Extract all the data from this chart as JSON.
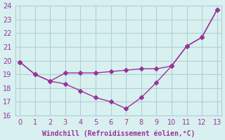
{
  "x": [
    0,
    1,
    2,
    3,
    4,
    5,
    6,
    7,
    8,
    9,
    10,
    11,
    12,
    13
  ],
  "temp_line": [
    19.9,
    19.0,
    18.5,
    19.1,
    19.1,
    19.1,
    19.2,
    19.3,
    19.4,
    19.4,
    19.6,
    21.05,
    21.7,
    23.7
  ],
  "windchill_line": [
    19.9,
    19.0,
    18.5,
    18.3,
    17.8,
    17.3,
    17.0,
    16.5,
    17.3,
    18.4,
    19.6,
    21.05,
    21.7,
    23.7
  ],
  "line_color": "#993399",
  "bg_color": "#d8f0f0",
  "grid_color": "#b0d0d0",
  "xlabel": "Windchill (Refroidissement éolien,°C)",
  "xlabel_color": "#993399",
  "tick_color": "#993399",
  "ylim": [
    16,
    24
  ],
  "xlim": [
    0,
    13
  ],
  "yticks": [
    16,
    17,
    18,
    19,
    20,
    21,
    22,
    23,
    24
  ],
  "xticks": [
    0,
    1,
    2,
    3,
    4,
    5,
    6,
    7,
    8,
    9,
    10,
    11,
    12,
    13
  ]
}
